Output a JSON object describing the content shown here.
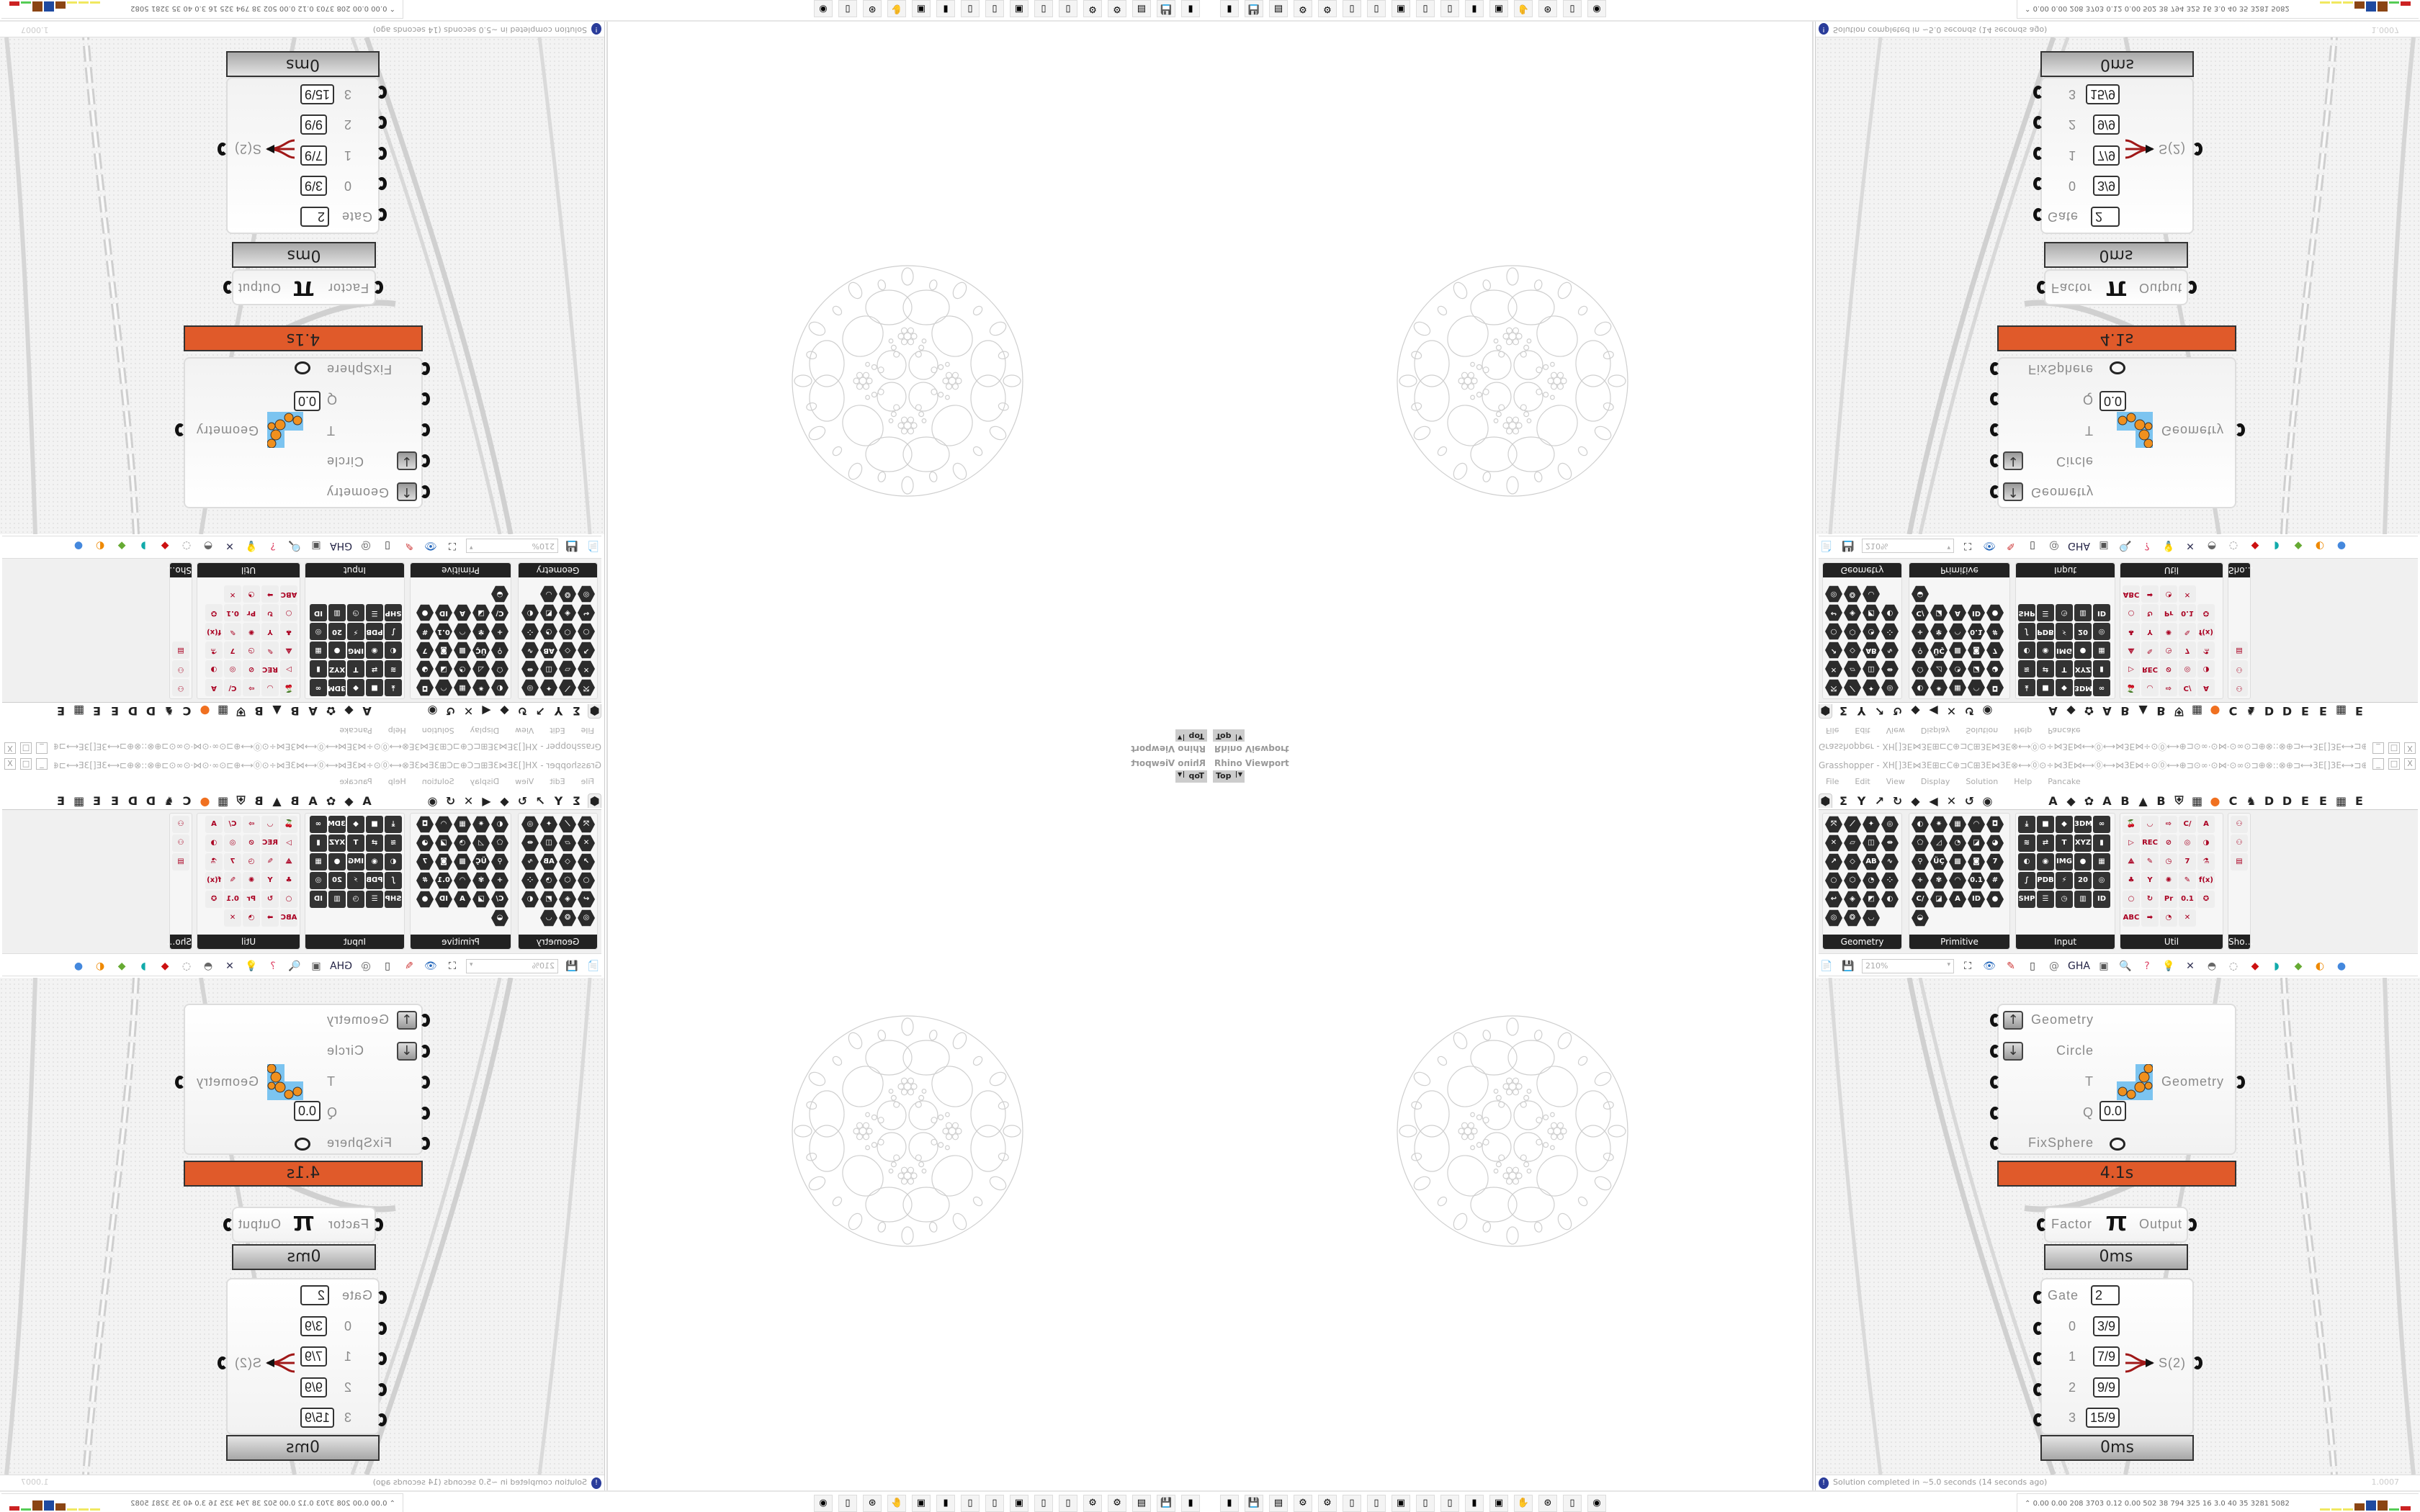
{
  "rhino": {
    "title": "Rhino Viewport",
    "view": "Top"
  },
  "gh": {
    "title": "Grasshopper - XH[]3E⋈3E⊞⊏C⊕⊐C⊞3E⋈3E⊗⟷⓪⊙÷⋈3E⋈⟷⓪⟷⋈3E⋈÷⊙⓪⟷⊕⊐⊙∞·⊙⋈·⊙∞⊙⊐⊕⊗::⊗⊕⊐⟷3E[]3E⟷⊐⊕⊗::⊗⊕⊐⊙∞·⊙⋈·⊙∞⊙⊐⊕⟷⓪⊙÷⋈3E⋈⟷⓪⟷…",
    "window_buttons": [
      "_",
      "□",
      "X"
    ],
    "menu": [
      "File",
      "Edit",
      "View",
      "Display",
      "Solution",
      "Help",
      "Pancake"
    ],
    "tabs_left": [
      "⬢",
      "Σ",
      "Y",
      "↗",
      "↻",
      "◆",
      "◀",
      "✕",
      "↺",
      "◉"
    ],
    "tabs_right": [
      "A",
      "◆",
      "✿",
      "A",
      "B",
      "▲",
      "B",
      "⛨",
      "▦",
      "●",
      "C",
      "♞",
      "D",
      "D",
      "E",
      "E",
      "▦",
      "E"
    ],
    "panels": [
      {
        "label": "Geometry",
        "icons": [
          "⤧",
          "⟋",
          "✦",
          "◎",
          "✕",
          "▱",
          "◫",
          "⇹",
          "↗",
          "◇",
          "AB",
          "∿",
          "○",
          "⬡",
          "◔",
          "⁘",
          "↩",
          "◈",
          "◩",
          "◐",
          "◎",
          "❂",
          "◡"
        ]
      },
      {
        "label": "Primitive",
        "icons": [
          "◐",
          "✷",
          "▦",
          "◠",
          "◘",
          "⬠",
          "◿",
          "◔",
          "◪",
          "◕",
          "⚲",
          "ÜÇ",
          "▩",
          "◙",
          "7",
          "+",
          "✾",
          "◠",
          "0.1",
          "#",
          "C/",
          "◪",
          "A",
          "ID",
          "●",
          "◒"
        ]
      },
      {
        "label": "Input",
        "icons": [
          "⤓",
          "■",
          "◆",
          "3DM",
          "∞",
          "≋",
          "⇄",
          "T",
          "XYZ",
          "▮",
          "◐",
          "◉",
          "IMG",
          "●",
          "▦",
          "∫",
          "PDB",
          "⚡",
          "20",
          "◎",
          "SHP",
          "☰",
          "◷",
          "▥",
          "ID"
        ]
      },
      {
        "label": "Util",
        "icons": [
          "🍒",
          "◡",
          "⇨",
          "C/",
          "A",
          "▷",
          "REC",
          "⊘",
          "◎",
          "◑",
          "⟁",
          "✎",
          "◷",
          "7",
          "⚗",
          "♣",
          "Y",
          "✺",
          "✎",
          "f(x)",
          "○",
          "↻",
          "Pr",
          "0.1",
          "✪",
          "ABC",
          "➡",
          "◔",
          "✕"
        ]
      },
      {
        "label": "Sho…",
        "icons": [
          "⚇",
          "⚇",
          "▤"
        ]
      }
    ],
    "toolbar": {
      "zoom": "210%",
      "icons": [
        "📄",
        "💾",
        "⛶",
        "👁",
        "✎",
        "▯",
        "@",
        "GHA",
        "▣",
        "🔍",
        "?",
        "💡",
        "✕",
        "◓",
        "◌",
        "◆",
        "◗",
        "◆",
        "◐",
        "●"
      ]
    },
    "status": "Solution completed in ~5.0 seconds (14 seconds ago)",
    "status_right": "1.0007"
  },
  "components": {
    "kangaroo": {
      "inputs": [
        "Geometry",
        "Circle",
        "T",
        "Q",
        "FixSphere"
      ],
      "q_value": "0.0",
      "output": "Geometry",
      "time": "4.1s",
      "time_color": "#e05a2a"
    },
    "pi": {
      "input": "Factor",
      "symbol": "π",
      "output": "Output",
      "time": "0ms"
    },
    "gate": {
      "inputs": [
        "Gate",
        "0",
        "1",
        "2",
        "3"
      ],
      "values": [
        "2",
        "3/9",
        "7/9",
        "9/9",
        "15/9"
      ],
      "output": "S(2)",
      "time": "0ms"
    }
  },
  "taskbar": {
    "icons": [
      "▮",
      "💾",
      "▤",
      "⚙",
      "⚙",
      "▯",
      "▯",
      "▣",
      "▯",
      "▯",
      "▮",
      "▣",
      "✋",
      "⊛",
      "▯",
      "◉"
    ],
    "tray": "0.00 0.00 208 3703 0.12 0.00 502 38 794 325 16 3.0 40 35 3281 5082",
    "tray_colors": [
      "#f0e860",
      "#f0e860",
      "#f0e860",
      "#8b4513",
      "#1f4aa0",
      "#8b4513",
      "#55cc55",
      "#cc2222"
    ]
  }
}
